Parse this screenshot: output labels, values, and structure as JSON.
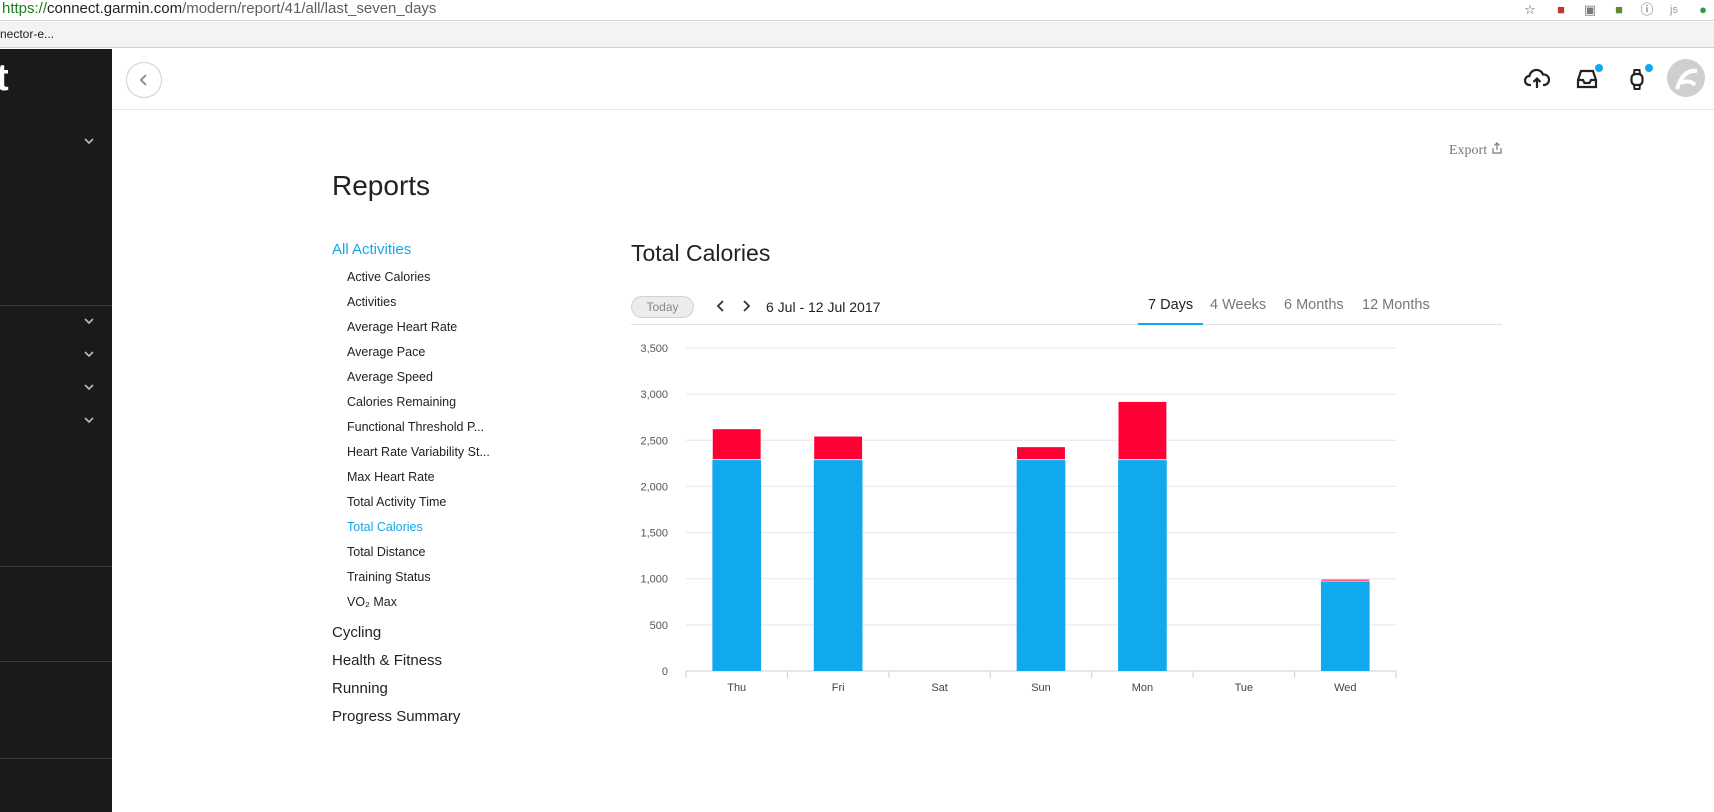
{
  "browser": {
    "url_scheme": "https://",
    "url_host": "connect.garmin.com",
    "url_path": "/modern/report/41/all/last_seven_days",
    "bookmark": "nector-e..."
  },
  "header": {
    "upload_icon": "cloud-upload-icon",
    "inbox_icon": "inbox-icon",
    "device_icon": "watch-icon",
    "accent": "#11a9ed"
  },
  "page": {
    "export_label": "Export",
    "title": "Reports"
  },
  "reports_nav": {
    "active_category": "All Activities",
    "items": [
      "Active Calories",
      "Activities",
      "Average Heart Rate",
      "Average Pace",
      "Average Speed",
      "Calories Remaining",
      "Functional Threshold P...",
      "Heart Rate Variability St...",
      "Max Heart Rate",
      "Total Activity Time",
      "Total Calories",
      "Total Distance",
      "Training Status",
      "VO₂ Max"
    ],
    "active_item": "Total Calories",
    "categories": [
      "Cycling",
      "Health & Fitness",
      "Running",
      "Progress Summary"
    ]
  },
  "report": {
    "title": "Total Calories",
    "today_label": "Today",
    "date_range": "6 Jul - 12 Jul 2017",
    "periods": [
      "7 Days",
      "4 Weeks",
      "6 Months",
      "12 Months"
    ],
    "active_period": "7 Days"
  },
  "chart_data": {
    "type": "bar",
    "stacked": true,
    "categories": [
      "Thu",
      "Fri",
      "Sat",
      "Sun",
      "Mon",
      "Tue",
      "Wed"
    ],
    "series": [
      {
        "color": "#11a9ed",
        "values": [
          2290,
          2290,
          0,
          2290,
          2290,
          0,
          975
        ]
      },
      {
        "color": "#ff0035",
        "values": [
          335,
          255,
          0,
          140,
          630,
          0,
          20
        ]
      }
    ],
    "ylim": [
      0,
      3500
    ],
    "yticks": [
      0,
      500,
      1000,
      1500,
      2000,
      2500,
      3000,
      3500
    ],
    "ytick_labels": [
      "0",
      "500",
      "1,000",
      "1,500",
      "2,000",
      "2,500",
      "3,000",
      "3,500"
    ],
    "grid": true
  }
}
